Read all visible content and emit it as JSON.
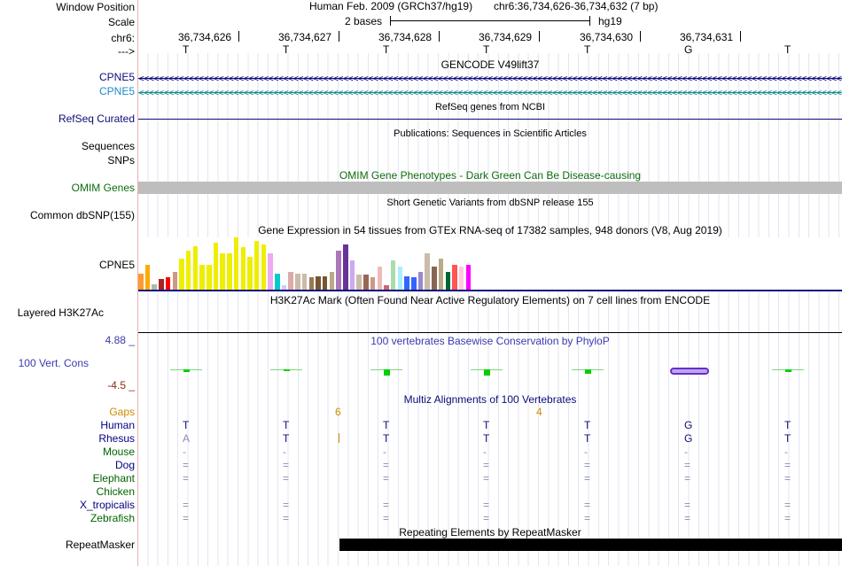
{
  "header": {
    "assembly": "Human Feb. 2009 (GRCh37/hg19)",
    "position": "chr6:36,734,626-36,734,632 (7 bp)",
    "scale_text": "2 bases",
    "scale_assembly": "hg19",
    "coords": [
      "36,734,626",
      "36,734,627",
      "36,734,628",
      "36,734,629",
      "36,734,630",
      "36,734,631"
    ],
    "bases": [
      "T",
      "T",
      "T",
      "T",
      "T",
      "G",
      "T"
    ],
    "strand_arrow": "--->"
  },
  "labels": {
    "window_position": "Window Position",
    "scale": "Scale",
    "chrom": "chr6:",
    "arrow": "--->",
    "cpne5_a": "CPNE5",
    "cpne5_b": "CPNE5",
    "refseq": "RefSeq Curated",
    "sequences": "Sequences",
    "snps": "SNPs",
    "omim": "OMIM Genes",
    "dbsnp": "Common dbSNP(155)",
    "gtex_gene": "CPNE5",
    "h3k27ac": "Layered H3K27Ac",
    "vert_cons": "100 Vert. Cons",
    "cons_max": "4.88 _",
    "cons_min": "-4.5 _",
    "gaps": "Gaps",
    "repeatmasker": "RepeatMasker"
  },
  "tracks": {
    "gencode_title": "GENCODE V49lift37",
    "refseq_title": "RefSeq genes from NCBI",
    "pubs_title": "Publications: Sequences in Scientific Articles",
    "omim_title": "OMIM Gene Phenotypes - Dark Green Can Be Disease-causing",
    "dbsnp_title": "Short Genetic Variants from dbSNP release 155",
    "gtex_title": "Gene Expression in 54 tissues from GTEx RNA-seq of 17382 samples, 948 donors (V8, Aug 2019)",
    "h3k27ac_title": "H3K27Ac Mark (Often Found Near Active Regulatory Elements) on 7 cell lines from ENCODE",
    "phylop_title": "100 vertebrates Basewise Conservation by PhyloP",
    "multiz_title": "Multiz Alignments of 100 Vertebrates",
    "repeat_title": "Repeating Elements by RepeatMasker",
    "arrow_glyphs": "<<<<<<<<<<<<<<<<<<<<<<<<<<<<<<<<<<<<<<<<<<<<<<<<<<<<<<<<<<<<<<<<<<<<<<<<<<<<<<<<<<<<<<<<<<<<<<<<<<<<<<<<<<<<<<<<<<<<<<<<<<<<<<<<<<<<<<<<<<<<<<<<<<<<<<<<<"
  },
  "gaps": [
    "6",
    "4"
  ],
  "alignment": [
    {
      "species": "Human",
      "color": "#000080",
      "row": [
        "T",
        "T",
        "T",
        "T",
        "T",
        "G",
        "T"
      ]
    },
    {
      "species": "Rhesus",
      "color": "#000080",
      "row": [
        "A",
        "T",
        "T",
        "T",
        "T",
        "G",
        "T"
      ]
    },
    {
      "species": "Mouse",
      "color": "#006400",
      "row": [
        "-",
        "-",
        "-",
        "-",
        "-",
        "-",
        "-"
      ]
    },
    {
      "species": "Dog",
      "color": "#000080",
      "row": [
        "=",
        "=",
        "=",
        "=",
        "=",
        "=",
        "="
      ]
    },
    {
      "species": "Elephant",
      "color": "#006400",
      "row": [
        "=",
        "=",
        "=",
        "=",
        "=",
        "=",
        "="
      ]
    },
    {
      "species": "Chicken",
      "color": "#006400",
      "row": [
        "",
        "",
        "",
        "",
        "",
        "",
        ""
      ]
    },
    {
      "species": "X_tropicalis",
      "color": "#000080",
      "row": [
        "=",
        "=",
        "=",
        "=",
        "=",
        "=",
        "="
      ]
    },
    {
      "species": "Zebrafish",
      "color": "#006400",
      "row": [
        "=",
        "=",
        "=",
        "=",
        "=",
        "=",
        "="
      ]
    }
  ],
  "gtex": {
    "colors": [
      "#FF9933",
      "#FFAA00",
      "#AABBAA",
      "#AA2222",
      "#FF0000",
      "#CC9988",
      "#EEEE00",
      "#EEEE00",
      "#EEEE00",
      "#EEEE00",
      "#EEEE00",
      "#EEEE00",
      "#EEEE00",
      "#EEEE00",
      "#EEEE00",
      "#EEEE00",
      "#EEEE00",
      "#EEEE00",
      "#EEEE00",
      "#EEAAEE",
      "#00CCCC",
      "#CCCCFF",
      "#DDAAAA",
      "#CCBBAA",
      "#CCBBAA",
      "#997755",
      "#775533",
      "#775533",
      "#BBAA88",
      "#AA77BB",
      "#663399",
      "#CCAAEE",
      "#CCBBAA",
      "#996655",
      "#CC9988",
      "#EEBBBB",
      "#CC6677",
      "#AADDAA",
      "#AAEEFF",
      "#3366FF",
      "#3366FF",
      "#9988CC",
      "#CCBBAA",
      "#886655",
      "#BBAA88",
      "#006633",
      "#FF5555",
      "#FFCCDD",
      "#FF00FF"
    ],
    "values": [
      20,
      30,
      6,
      13,
      15,
      22,
      38,
      48,
      53,
      30,
      30,
      58,
      45,
      45,
      64,
      52,
      40,
      60,
      55,
      45,
      20,
      5,
      22,
      20,
      20,
      15,
      16,
      16,
      22,
      48,
      55,
      36,
      18,
      18,
      15,
      28,
      5,
      36,
      28,
      16,
      15,
      22,
      45,
      28,
      38,
      22,
      30,
      28,
      30
    ]
  },
  "phylop_values": [
    0.3,
    0.2,
    0.8,
    0.8,
    0.6,
    -0.9,
    0.3
  ]
}
